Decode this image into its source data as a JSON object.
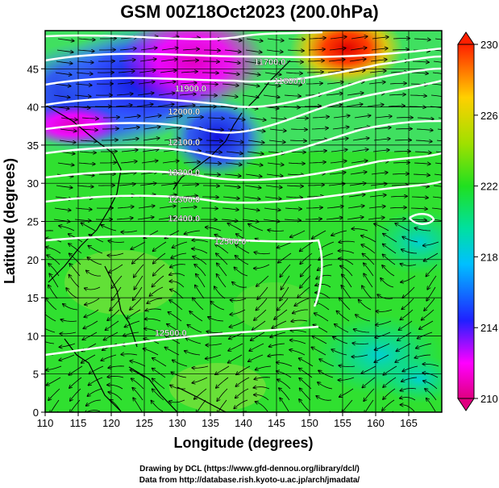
{
  "title": "GSM 00Z18Oct2023 (200.0hPa)",
  "xlabel": "Longitude (degrees)",
  "ylabel": "Latitude  (degrees)",
  "footer_line1": "Drawing by DCL (https://www.gfd-dennou.org/library/dcl/)",
  "footer_line2": "Data from http://database.rish.kyoto-u.ac.jp/arch/jmadata/",
  "colorbar": {
    "ticks": [
      230,
      226,
      222,
      218,
      214,
      210
    ],
    "range": [
      210,
      230
    ],
    "colors": [
      "#e00060",
      "#ff00ff",
      "#2020ff",
      "#00c0ff",
      "#00e0a0",
      "#20e020",
      "#a0e000",
      "#ffd000",
      "#ff6000",
      "#ff2000"
    ]
  },
  "chart_data": {
    "type": "map",
    "x_ticks": [
      110,
      115,
      120,
      125,
      130,
      135,
      140,
      145,
      150,
      155,
      160,
      165
    ],
    "y_ticks": [
      0,
      5,
      10,
      15,
      20,
      25,
      30,
      35,
      40,
      45
    ],
    "xlim": [
      110,
      170
    ],
    "ylim": [
      0,
      50
    ],
    "contour_labels": [
      {
        "text": "11700.0",
        "lon": 144,
        "lat": 45.5
      },
      {
        "text": "11800.0",
        "lon": 147,
        "lat": 43
      },
      {
        "text": "11900.0",
        "lon": 132,
        "lat": 42
      },
      {
        "text": "12000.0",
        "lon": 131,
        "lat": 39
      },
      {
        "text": "12100.0",
        "lon": 131,
        "lat": 35
      },
      {
        "text": "12200.0",
        "lon": 131,
        "lat": 31
      },
      {
        "text": "12300.0",
        "lon": 131,
        "lat": 27.5
      },
      {
        "text": "12400.0",
        "lon": 131,
        "lat": 25
      },
      {
        "text": "12500.0",
        "lon": 138,
        "lat": 22
      },
      {
        "text": "12500.0",
        "lon": 129,
        "lat": 10
      }
    ]
  }
}
